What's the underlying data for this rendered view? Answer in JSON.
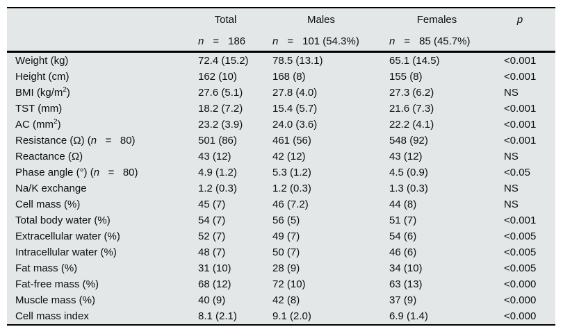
{
  "colors": {
    "table_bg": "#e3e7e7",
    "rule": "#000000",
    "text": "#0e0e0e"
  },
  "header": {
    "p_label": "p",
    "n_symbol": "n",
    "eq_symbol": "=",
    "groups": [
      {
        "title": "Total",
        "n_value": "186"
      },
      {
        "title": "Males",
        "n_value": "101 (54.3%)"
      },
      {
        "title": "Females",
        "n_value": "85 (45.7%)"
      }
    ]
  },
  "rows": [
    {
      "label": [
        {
          "t": "Weight (kg)"
        }
      ],
      "total": "72.4 (15.2)",
      "males": "78.5 (13.1)",
      "females": "65.1 (14.5)",
      "p": "<0.001"
    },
    {
      "label": [
        {
          "t": "Height (cm)"
        }
      ],
      "total": "162 (10)",
      "males": "168 (8)",
      "females": "155 (8)",
      "p": "<0.001"
    },
    {
      "label": [
        {
          "t": "BMI (kg/m"
        },
        {
          "t": "2",
          "sup": true
        },
        {
          "t": ")"
        }
      ],
      "total": "27.6 (5.1)",
      "males": "27.8 (4.0)",
      "females": "27.3 (6.2)",
      "p": "NS"
    },
    {
      "label": [
        {
          "t": "TST (mm)"
        }
      ],
      "total": "18.2 (7.2)",
      "males": "15.4 (5.7)",
      "females": "21.6 (7.3)",
      "p": "<0.001"
    },
    {
      "label": [
        {
          "t": "AC (mm"
        },
        {
          "t": "2",
          "sup": true
        },
        {
          "t": ")"
        }
      ],
      "total": "23.2 (3.9)",
      "males": "24.0 (3.6)",
      "females": "22.2 (4.1)",
      "p": "<0.001"
    },
    {
      "label": [
        {
          "t": "Resistance (Ω) ("
        },
        {
          "t": "n",
          "i": true
        },
        {
          "t": "   =   80)"
        }
      ],
      "total": "501 (86)",
      "males": "461 (56)",
      "females": "548 (92)",
      "p": "<0.001"
    },
    {
      "label": [
        {
          "t": "Reactance (Ω)"
        }
      ],
      "total": "43 (12)",
      "males": "42 (12)",
      "females": "43 (12)",
      "p": "NS"
    },
    {
      "label": [
        {
          "t": "Phase angle (°) ("
        },
        {
          "t": "n",
          "i": true
        },
        {
          "t": "   =   80)"
        }
      ],
      "total": "4.9 (1.2)",
      "males": "5.3 (1.2)",
      "females": "4.5 (0.9)",
      "p": "<0.05"
    },
    {
      "label": [
        {
          "t": "Na/K exchange"
        }
      ],
      "total": "1.2 (0.3)",
      "males": "1.2 (0.3)",
      "females": "1.3 (0.3)",
      "p": "NS"
    },
    {
      "label": [
        {
          "t": "Cell mass (%)"
        }
      ],
      "total": "45 (7)",
      "males": "46 (7.2)",
      "females": "44 (8)",
      "p": "NS"
    },
    {
      "label": [
        {
          "t": "Total body water (%)"
        }
      ],
      "total": "54 (7)",
      "males": "56 (5)",
      "females": "51 (7)",
      "p": "<0.001"
    },
    {
      "label": [
        {
          "t": "Extracellular water (%)"
        }
      ],
      "total": "52 (7)",
      "males": "49 (7)",
      "females": "54 (6)",
      "p": "<0.005"
    },
    {
      "label": [
        {
          "t": "Intracellular water (%)"
        }
      ],
      "total": "48 (7)",
      "males": "50 (7)",
      "females": "46 (6)",
      "p": "<0.005"
    },
    {
      "label": [
        {
          "t": "Fat mass (%)"
        }
      ],
      "total": "31 (10)",
      "males": "28 (9)",
      "females": "34 (10)",
      "p": "<0.005"
    },
    {
      "label": [
        {
          "t": "Fat-free mass (%)"
        }
      ],
      "total": "68 (12)",
      "males": "72 (10)",
      "females": "63 (13)",
      "p": "<0.000"
    },
    {
      "label": [
        {
          "t": "Muscle mass (%)"
        }
      ],
      "total": "40 (9)",
      "males": "42 (8)",
      "females": "37 (9)",
      "p": "<0.000"
    },
    {
      "label": [
        {
          "t": "Cell mass index"
        }
      ],
      "total": "8.1 (2.1)",
      "males": "9.1 (2.0)",
      "females": "6.9 (1.4)",
      "p": "<0.000"
    }
  ]
}
